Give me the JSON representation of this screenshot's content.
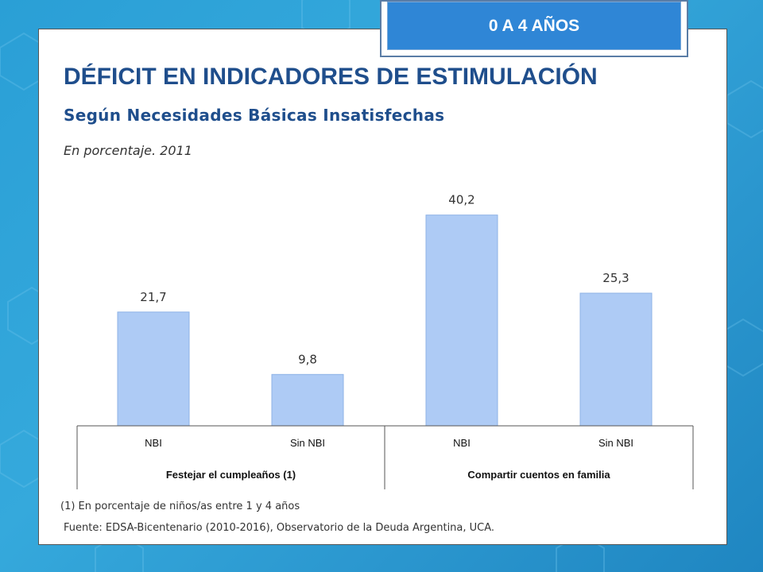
{
  "header": {
    "badge": "0 A 4 AÑOS",
    "title": "DÉFICIT EN INDICADORES DE ESTIMULACIÓN",
    "subtitle": "Según Necesidades Básicas Insatisfechas",
    "subsubtitle": "En porcentaje. 2011"
  },
  "footnotes": {
    "note": "(1) En porcentaje de niños/as entre 1 y 4 años",
    "source": "Fuente: EDSA-Bicentenario (2010-2016), Observatorio de la Deuda Argentina, UCA."
  },
  "colors": {
    "bar": "#aecbf5",
    "bar_border": "#8fb3e6",
    "title": "#1f4e8c",
    "badge": "#2f86d6"
  },
  "chart_data": {
    "type": "bar",
    "categories": [
      "NBI",
      "Sin NBI",
      "NBI",
      "Sin NBI"
    ],
    "groups": [
      "Festejar el cumpleaños (1)",
      "Compartir cuentos en familia"
    ],
    "values": [
      21.7,
      9.8,
      40.2,
      25.3
    ],
    "value_labels": [
      "21,7",
      "9,8",
      "40,2",
      "25,3"
    ],
    "ylim": [
      0,
      45
    ],
    "grid": false,
    "legend": "none"
  }
}
